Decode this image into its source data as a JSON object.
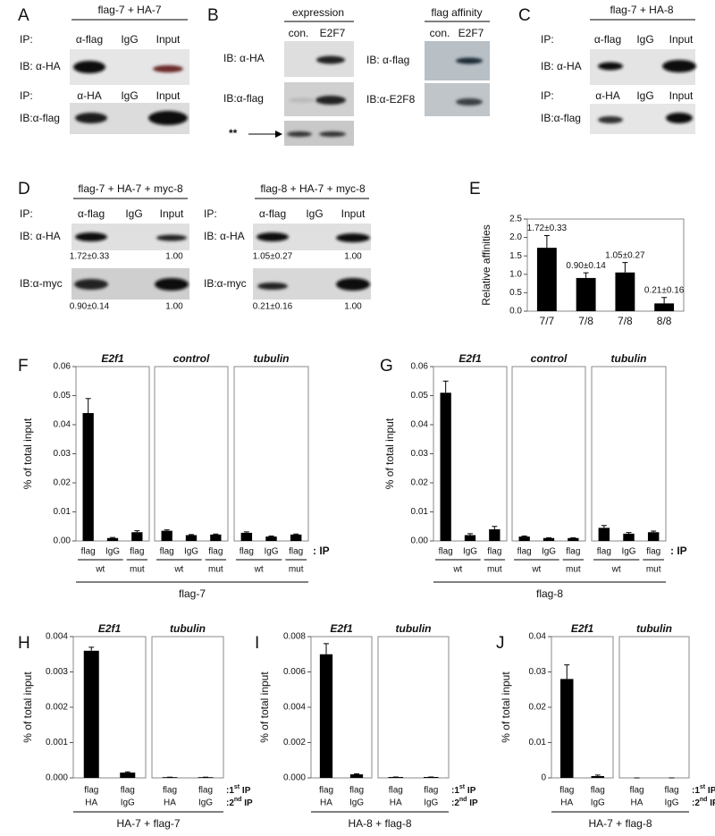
{
  "panels": {
    "A": {
      "label": "A",
      "header": "flag-7 + HA-7",
      "rows": [
        {
          "ip": "IP:",
          "lanes": [
            "α-flag",
            "IgG",
            "Input"
          ],
          "ib": "IB: α-HA"
        },
        {
          "ip": "IP:",
          "lanes": [
            "α-HA",
            "IgG",
            "Input"
          ],
          "ib": "IB:α-flag"
        }
      ]
    },
    "B": {
      "label": "B",
      "groups": [
        {
          "header": "expression",
          "lanes": [
            "con.",
            "E2F7"
          ],
          "ib": [
            "IB: α-HA",
            "IB:α-flag"
          ],
          "marker": "**"
        },
        {
          "header": "flag affinity",
          "lanes": [
            "con.",
            "E2F7"
          ],
          "ib": [
            "IB:  α-flag",
            "IB:α-E2F8"
          ]
        }
      ]
    },
    "C": {
      "label": "C",
      "header": "flag-7 + HA-8",
      "rows": [
        {
          "ip": "IP:",
          "lanes": [
            "α-flag",
            "IgG",
            "Input"
          ],
          "ib": "IB: α-HA"
        },
        {
          "ip": "IP:",
          "lanes": [
            "α-HA",
            "IgG",
            "Input"
          ],
          "ib": "IB:α-flag"
        }
      ]
    },
    "D": {
      "label": "D",
      "blots": [
        {
          "header": "flag-7 + HA-7 + myc-8",
          "ip": "IP:",
          "lanes": [
            "α-flag",
            "IgG",
            "Input"
          ],
          "rows": [
            {
              "ib": "IB: α-HA",
              "quant": [
                "1.72±0.33",
                "1.00"
              ]
            },
            {
              "ib": "IB:α-myc",
              "quant": [
                "0.90±0.14",
                "1.00"
              ]
            }
          ]
        },
        {
          "header": "flag-8 + HA-7 + myc-8",
          "ip": "IP:",
          "lanes": [
            "α-flag",
            "IgG",
            "Input"
          ],
          "rows": [
            {
              "ib": "IB: α-HA",
              "quant": [
                "1.05±0.27",
                "1.00"
              ]
            },
            {
              "ib": "IB:α-myc",
              "quant": [
                "0.21±0.16",
                "1.00"
              ]
            }
          ]
        }
      ]
    },
    "E": {
      "label": "E"
    },
    "F": {
      "label": "F",
      "ip": ": IP",
      "sample": "flag-7"
    },
    "G": {
      "label": "G",
      "ip": ": IP",
      "sample": "flag-8"
    },
    "H": {
      "label": "H",
      "ip_rows": [
        {
          "pre": ":1",
          "sup": "st",
          "post": " IP"
        },
        {
          "pre": ":2",
          "sup": "nd",
          "post": " IP"
        }
      ],
      "sample": "HA-7 + flag-7"
    },
    "I": {
      "label": "I",
      "ip_rows": [
        {
          "pre": ":1",
          "sup": "st",
          "post": " IP"
        },
        {
          "pre": ":2",
          "sup": "nd",
          "post": " IP"
        }
      ],
      "sample": "HA-8 + flag-8"
    },
    "J": {
      "label": "J",
      "ip_rows": [
        {
          "pre": ":1",
          "sup": "st",
          "post": " IP"
        },
        {
          "pre": ":2",
          "sup": "nd",
          "post": " IP"
        }
      ],
      "sample": "HA-7 + flag-8"
    }
  },
  "chart_data": [
    {
      "type": "bar",
      "y_label": "Relative affinities",
      "categories": [
        "7/7",
        "7/8",
        "7/8",
        "8/8"
      ],
      "values": [
        1.72,
        0.9,
        1.05,
        0.21
      ],
      "errors": [
        0.33,
        0.14,
        0.27,
        0.16
      ],
      "value_labels": [
        "1.72±0.33",
        "0.90±0.14",
        "1.05±0.27",
        "0.21±0.16"
      ],
      "color": "#000000",
      "ylim": [
        0,
        2.5
      ],
      "yticks": [
        {
          "value": 0,
          "label": "0.0"
        },
        0.5,
        {
          "value": 1,
          "label": "1.0"
        },
        1.5,
        {
          "value": 2,
          "label": "2.0"
        },
        2.5
      ]
    },
    {
      "type": "bar",
      "title": "E2f1",
      "y_label": "% of total input",
      "categories": [
        "flag",
        "IgG",
        "flag"
      ],
      "groups": [
        "wt",
        "mut"
      ],
      "values": [
        0.044,
        0.001,
        0.003
      ],
      "errors": [
        0.005,
        0.0002,
        0.0005
      ],
      "color": "#000000",
      "ylim": [
        0,
        0.06
      ],
      "yticks": [
        {
          "value": 0,
          "label": "0.00"
        },
        0.01,
        0.02,
        0.03,
        0.04,
        0.05,
        0.06
      ]
    },
    {
      "type": "bar",
      "title": "control",
      "categories": [
        "flag",
        "IgG",
        "flag"
      ],
      "groups": [
        "wt",
        "mut"
      ],
      "values": [
        0.0035,
        0.002,
        0.0022
      ],
      "errors": [
        0.0003,
        0.0002,
        0.0002
      ],
      "color": "#000000",
      "ylim": [
        0,
        0.06
      ]
    },
    {
      "type": "bar",
      "title": "tubulin",
      "categories": [
        "flag",
        "IgG",
        "flag"
      ],
      "groups": [
        "wt",
        "mut"
      ],
      "values": [
        0.0028,
        0.0015,
        0.0022
      ],
      "errors": [
        0.0003,
        0.0002,
        0.0002
      ],
      "color": "#000000",
      "ylim": [
        0,
        0.06
      ]
    },
    {
      "type": "bar",
      "title": "E2f1",
      "y_label": "% of total input",
      "categories": [
        "flag",
        "IgG",
        "flag"
      ],
      "groups": [
        "wt",
        "mut"
      ],
      "values": [
        0.051,
        0.002,
        0.004
      ],
      "errors": [
        0.004,
        0.0005,
        0.001
      ],
      "color": "#000000",
      "ylim": [
        0,
        0.06
      ],
      "yticks": [
        {
          "value": 0,
          "label": "0.00"
        },
        0.01,
        0.02,
        0.03,
        0.04,
        0.05,
        0.06
      ]
    },
    {
      "type": "bar",
      "title": "control",
      "categories": [
        "flag",
        "IgG",
        "flag"
      ],
      "groups": [
        "wt",
        "mut"
      ],
      "values": [
        0.0015,
        0.001,
        0.001
      ],
      "errors": [
        0.0002,
        0.0001,
        0.0001
      ],
      "color": "#000000",
      "ylim": [
        0,
        0.06
      ]
    },
    {
      "type": "bar",
      "title": "tubulin",
      "categories": [
        "flag",
        "IgG",
        "flag"
      ],
      "groups": [
        "wt",
        "mut"
      ],
      "values": [
        0.0045,
        0.0025,
        0.003
      ],
      "errors": [
        0.0008,
        0.0004,
        0.0004
      ],
      "color": "#000000",
      "ylim": [
        0,
        0.06
      ]
    },
    {
      "type": "bar",
      "title": "E2f1",
      "y_label": "% of total input",
      "categories": [
        "flag",
        "flag"
      ],
      "categories2": [
        "HA",
        "IgG"
      ],
      "values": [
        0.0036,
        0.00015
      ],
      "errors": [
        0.0001,
        2e-05
      ],
      "color": "#000000",
      "ylim": [
        0,
        0.004
      ],
      "yticks": [
        {
          "value": 0,
          "label": "0.000"
        },
        0.001,
        0.002,
        0.003,
        0.004
      ]
    },
    {
      "type": "bar",
      "title": "tubulin",
      "categories": [
        "flag",
        "flag"
      ],
      "categories2": [
        "HA",
        "IgG"
      ],
      "values": [
        2e-05,
        2e-05
      ],
      "errors": [
        0,
        0
      ],
      "color": "#000000",
      "ylim": [
        0,
        0.004
      ]
    },
    {
      "type": "bar",
      "title": "E2f1",
      "y_label": "% of total input",
      "categories": [
        "flag",
        "flag"
      ],
      "categories2": [
        "HA",
        "IgG"
      ],
      "values": [
        0.007,
        0.0002
      ],
      "errors": [
        0.0006,
        3e-05
      ],
      "color": "#000000",
      "ylim": [
        0,
        0.008
      ],
      "yticks": [
        {
          "value": 0,
          "label": "0.000"
        },
        0.002,
        0.004,
        0.006,
        0.008
      ]
    },
    {
      "type": "bar",
      "title": "tubulin",
      "categories": [
        "flag",
        "flag"
      ],
      "categories2": [
        "HA",
        "IgG"
      ],
      "values": [
        5e-05,
        5e-05
      ],
      "errors": [
        0,
        0
      ],
      "color": "#000000",
      "ylim": [
        0,
        0.008
      ]
    },
    {
      "type": "bar",
      "title": "E2f1",
      "y_label": "% of total input",
      "categories": [
        "flag",
        "flag"
      ],
      "categories2": [
        "HA",
        "IgG"
      ],
      "values": [
        0.028,
        0.0005
      ],
      "errors": [
        0.004,
        0.0003
      ],
      "color": "#000000",
      "ylim": [
        0,
        0.04
      ],
      "yticks": [
        0,
        0.01,
        0.02,
        0.03,
        0.04
      ]
    },
    {
      "type": "bar",
      "title": "tubulin",
      "categories": [
        "flag",
        "flag"
      ],
      "categories2": [
        "HA",
        "IgG"
      ],
      "values": [
        0,
        0
      ],
      "errors": [
        0,
        0
      ],
      "color": "#000000",
      "ylim": [
        0,
        0.04
      ]
    }
  ]
}
